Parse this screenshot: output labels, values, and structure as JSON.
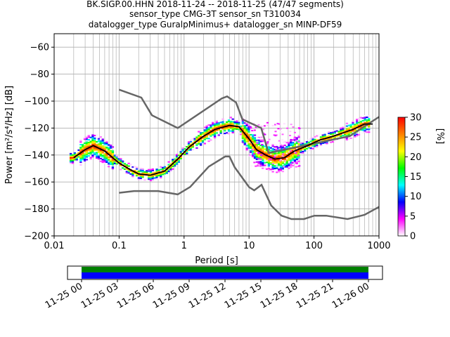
{
  "chart_data": {
    "type": "heatmap",
    "title_lines": [
      "BK.SIGP.00.HHN   2018-11-24 -- 2018-11-25  (47/47 segments)",
      "sensor_type CMG-3T sensor_sn T310034",
      "datalogger_type GuralpMinimus+ datalogger_sn MINP-DF59"
    ],
    "xlabel": "Period [s]",
    "ylabel": "Power [m²/s⁴/Hz] [dB]",
    "x_scale": "log",
    "xlim": [
      0.01,
      1000
    ],
    "ylim": [
      -200,
      -50
    ],
    "x_ticks": [
      {
        "value": 0.01,
        "label": "0.01"
      },
      {
        "value": 0.1,
        "label": "0.1"
      },
      {
        "value": 1,
        "label": "1"
      },
      {
        "value": 10,
        "label": "10"
      },
      {
        "value": 100,
        "label": "100"
      },
      {
        "value": 1000,
        "label": "1000"
      }
    ],
    "y_ticks": [
      {
        "value": -60,
        "label": "−60"
      },
      {
        "value": -80,
        "label": "−80"
      },
      {
        "value": -100,
        "label": "−100"
      },
      {
        "value": -120,
        "label": "−120"
      },
      {
        "value": -140,
        "label": "−140"
      },
      {
        "value": -160,
        "label": "−160"
      },
      {
        "value": -180,
        "label": "−180"
      },
      {
        "value": -200,
        "label": "−200"
      }
    ],
    "grid": true,
    "noise_models": {
      "color": "#666666",
      "high": [
        [
          0.1,
          -91.5
        ],
        [
          0.22,
          -97.4
        ],
        [
          0.32,
          -110.5
        ],
        [
          0.8,
          -120
        ],
        [
          3.8,
          -98
        ],
        [
          4.6,
          -96.5
        ],
        [
          6.3,
          -101
        ],
        [
          7.9,
          -113.5
        ],
        [
          15.4,
          -120
        ],
        [
          20,
          -138.5
        ],
        [
          354.8,
          -126
        ],
        [
          10000,
          -80
        ]
      ],
      "low": [
        [
          0.1,
          -168
        ],
        [
          0.17,
          -166.7
        ],
        [
          0.4,
          -166.7
        ],
        [
          0.8,
          -169.2
        ],
        [
          1.24,
          -163.7
        ],
        [
          2.4,
          -148.6
        ],
        [
          4.3,
          -141.1
        ],
        [
          5,
          -141.1
        ],
        [
          6,
          -149
        ],
        [
          10,
          -163.8
        ],
        [
          12,
          -166.2
        ],
        [
          15.6,
          -162.1
        ],
        [
          21.9,
          -177.5
        ],
        [
          31.6,
          -185
        ],
        [
          45,
          -187.5
        ],
        [
          70,
          -187.5
        ],
        [
          101,
          -185
        ],
        [
          154,
          -185
        ],
        [
          328,
          -187.5
        ],
        [
          600,
          -184.4
        ],
        [
          10000,
          -151.9
        ]
      ]
    },
    "mean_curve": [
      [
        0.02,
        -142
      ],
      [
        0.03,
        -136
      ],
      [
        0.04,
        -133
      ],
      [
        0.06,
        -137
      ],
      [
        0.1,
        -146
      ],
      [
        0.15,
        -151
      ],
      [
        0.2,
        -154
      ],
      [
        0.3,
        -155
      ],
      [
        0.5,
        -152
      ],
      [
        0.8,
        -143
      ],
      [
        1.2,
        -134
      ],
      [
        2,
        -126
      ],
      [
        3,
        -121
      ],
      [
        5,
        -118
      ],
      [
        7,
        -119
      ],
      [
        10,
        -128
      ],
      [
        13,
        -136
      ],
      [
        18,
        -140
      ],
      [
        25,
        -143
      ],
      [
        35,
        -142
      ],
      [
        50,
        -137
      ],
      [
        80,
        -133
      ],
      [
        120,
        -129
      ],
      [
        200,
        -126
      ],
      [
        300,
        -123
      ],
      [
        400,
        -121
      ],
      [
        600,
        -117
      ],
      [
        800,
        -117
      ]
    ],
    "colorbar": {
      "label": "[%]",
      "range": [
        0,
        30
      ],
      "ticks": [
        {
          "value": 0,
          "label": "0"
        },
        {
          "value": 5,
          "label": "5"
        },
        {
          "value": 10,
          "label": "10"
        },
        {
          "value": 15,
          "label": "15"
        },
        {
          "value": 20,
          "label": "20"
        },
        {
          "value": 25,
          "label": "25"
        },
        {
          "value": 30,
          "label": "30"
        }
      ],
      "colors": [
        "#ffffff",
        "#ff00ff",
        "#0000ff",
        "#00ffff",
        "#00ff00",
        "#ffff00",
        "#ff8000",
        "#ff0000"
      ]
    },
    "time_coverage": {
      "range": [
        "2018-11-24 22:05",
        "2018-11-26 02:00"
      ],
      "data_span": [
        "2018-11-25 00:00",
        "2018-11-26 00:00"
      ],
      "bar_colors": [
        "#008000",
        "#0000ff"
      ],
      "tick_labels": [
        "11-25 00",
        "11-25 03",
        "11-25 06",
        "11-25 09",
        "11-25 12",
        "11-25 15",
        "11-25 18",
        "11-25 21",
        "11-26 00"
      ]
    }
  }
}
